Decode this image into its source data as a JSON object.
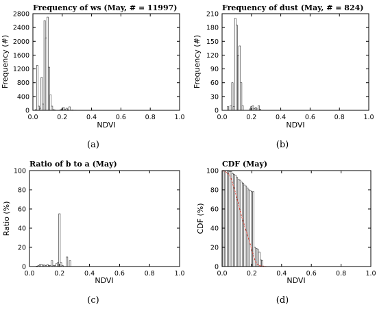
{
  "chart_data": [
    {
      "id": "a",
      "type": "bar",
      "title": "Frequency of ws (May, # = 11997)",
      "xlabel": "NDVI",
      "ylabel": "Frequency (#)",
      "caption": "(a)",
      "xlim": [
        0,
        1.0
      ],
      "ylim": [
        0,
        2800
      ],
      "xticks": [
        "0.0",
        "0.2",
        "0.4",
        "0.6",
        "0.8",
        "1.0"
      ],
      "yticks": [
        "0",
        "400",
        "800",
        "1200",
        "1600",
        "2000",
        "2400",
        "2800"
      ],
      "bin_width": 0.01,
      "x": [
        0.02,
        0.03,
        0.04,
        0.05,
        0.06,
        0.07,
        0.08,
        0.09,
        0.1,
        0.11,
        0.12,
        0.13,
        0.14,
        0.15,
        0.19,
        0.2,
        0.21,
        0.22,
        0.23,
        0.24,
        0.25,
        0.27,
        0.29
      ],
      "values": [
        20,
        1300,
        120,
        60,
        950,
        180,
        2600,
        2100,
        2700,
        1250,
        450,
        120,
        20,
        10,
        20,
        40,
        80,
        30,
        60,
        15,
        100,
        10,
        5
      ]
    },
    {
      "id": "b",
      "type": "bar",
      "title": "Frequency of dust (May, # = 824)",
      "xlabel": "NDVI",
      "ylabel": "Frequency (#)",
      "caption": "(b)",
      "xlim": [
        0,
        1.0
      ],
      "ylim": [
        0,
        210
      ],
      "xticks": [
        "0.0",
        "0.2",
        "0.4",
        "0.6",
        "0.8",
        "1.0"
      ],
      "yticks": [
        "0",
        "30",
        "60",
        "90",
        "120",
        "150",
        "180",
        "210"
      ],
      "bin_width": 0.01,
      "x": [
        0.04,
        0.06,
        0.07,
        0.08,
        0.09,
        0.1,
        0.11,
        0.12,
        0.13,
        0.14,
        0.19,
        0.2,
        0.21,
        0.22,
        0.23,
        0.24,
        0.25,
        0.26
      ],
      "values": [
        8,
        10,
        60,
        8,
        200,
        185,
        120,
        140,
        60,
        10,
        3,
        8,
        10,
        4,
        6,
        3,
        10,
        2
      ]
    },
    {
      "id": "c",
      "type": "bar",
      "title": "Ratio of b to a (May)",
      "xlabel": "NDVI",
      "ylabel": "Ratio (%)",
      "caption": "(c)",
      "xlim": [
        0,
        1.0
      ],
      "ylim": [
        0,
        100
      ],
      "xticks": [
        "0.0",
        "0.2",
        "0.4",
        "0.6",
        "0.8",
        "1.0"
      ],
      "yticks": [
        "0",
        "20",
        "40",
        "60",
        "80",
        "100"
      ],
      "bin_width": 0.01,
      "x": [
        0.05,
        0.06,
        0.07,
        0.08,
        0.09,
        0.1,
        0.11,
        0.12,
        0.13,
        0.14,
        0.15,
        0.16,
        0.17,
        0.18,
        0.19,
        0.2,
        0.21,
        0.22,
        0.25,
        0.27
      ],
      "values": [
        0.5,
        1,
        2,
        2,
        1.5,
        1.5,
        1,
        2,
        1,
        1,
        6,
        1,
        1,
        3,
        4,
        55,
        4,
        1,
        10,
        6
      ]
    },
    {
      "id": "d",
      "type": "bar",
      "title": "CDF (May)",
      "xlabel": "NDVI",
      "ylabel": "CDF (%)",
      "caption": "(d)",
      "xlim": [
        0,
        1.0
      ],
      "ylim": [
        0,
        100
      ],
      "xticks": [
        "0.0",
        "0.2",
        "0.4",
        "0.6",
        "0.8",
        "1.0"
      ],
      "yticks": [
        "0",
        "20",
        "40",
        "60",
        "80",
        "100"
      ],
      "bin_width": 0.01,
      "x": [
        0.01,
        0.02,
        0.03,
        0.04,
        0.05,
        0.06,
        0.07,
        0.08,
        0.09,
        0.1,
        0.11,
        0.12,
        0.13,
        0.14,
        0.15,
        0.16,
        0.17,
        0.18,
        0.19,
        0.2,
        0.21,
        0.22,
        0.23,
        0.24,
        0.25,
        0.26,
        0.27
      ],
      "values": [
        100,
        100,
        100,
        100,
        99,
        99,
        97,
        96,
        95,
        93,
        91,
        90,
        88,
        87,
        85,
        84,
        82,
        80,
        79,
        78,
        78,
        20,
        19,
        18,
        15,
        7,
        6
      ],
      "line": {
        "color": "#d9463a",
        "x": [
          0.0,
          0.02,
          0.04,
          0.05,
          0.06,
          0.07,
          0.08,
          0.09,
          0.1,
          0.11,
          0.12,
          0.13,
          0.14,
          0.15,
          0.16,
          0.17,
          0.18,
          0.19,
          0.2,
          0.21,
          0.22,
          0.23,
          0.25,
          0.3,
          0.5,
          0.8,
          1.0
        ],
        "y": [
          100,
          99,
          97,
          95,
          92,
          87,
          82,
          77,
          71,
          65,
          59,
          53,
          48,
          43,
          38,
          33,
          28,
          23,
          17,
          12,
          7,
          3,
          1,
          0,
          0,
          0,
          0
        ]
      }
    }
  ]
}
